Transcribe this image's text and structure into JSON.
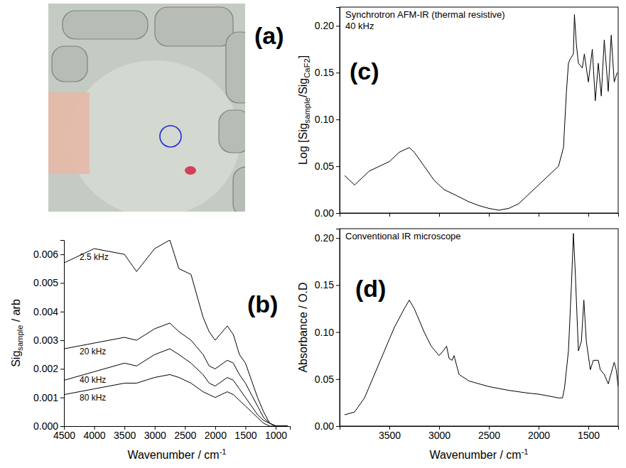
{
  "chart_data": [
    {
      "type": "image",
      "panel_label": "(a)"
    },
    {
      "type": "line",
      "panel_label": "(b)",
      "xlabel": [
        {
          "text": "Wavenumber / cm"
        },
        {
          "sup": "-1"
        }
      ],
      "ylabel": [
        {
          "text": "Sig"
        },
        {
          "sub": "sample"
        },
        {
          "text": " / arb"
        }
      ],
      "x": [
        4500,
        4000,
        3500,
        3300,
        3000,
        2750,
        2600,
        2400,
        2200,
        2100,
        2000,
        1800,
        1700,
        1600,
        1500,
        1400,
        1300,
        1200,
        1100,
        1000,
        800
      ],
      "series": [
        {
          "name": "2.5 kHz",
          "color": "#000000",
          "values": [
            0.0057,
            0.0062,
            0.006,
            0.0054,
            0.0062,
            0.0065,
            0.0055,
            0.0053,
            0.0038,
            0.0033,
            0.003,
            0.0035,
            0.0032,
            0.0025,
            0.0022,
            0.0016,
            0.001,
            0.0005,
            0.0001,
            0.0,
            0.0
          ]
        },
        {
          "name": "20 kHz",
          "color": "#000000",
          "values": [
            0.0027,
            0.0029,
            0.0031,
            0.003,
            0.0034,
            0.0036,
            0.0033,
            0.003,
            0.0025,
            0.0021,
            0.002,
            0.0023,
            0.0022,
            0.0018,
            0.0015,
            0.0011,
            0.0007,
            0.0003,
            0.0001,
            0.0,
            0.0
          ]
        },
        {
          "name": "40 kHz",
          "color": "#000000",
          "values": [
            0.0016,
            0.0019,
            0.0022,
            0.0021,
            0.0025,
            0.0027,
            0.0025,
            0.0022,
            0.0018,
            0.0015,
            0.0014,
            0.0017,
            0.0016,
            0.0013,
            0.001,
            0.0007,
            0.0004,
            0.0002,
            0.0001,
            0.0,
            0.0
          ]
        },
        {
          "name": "80 kHz",
          "color": "#000000",
          "values": [
            0.0011,
            0.0013,
            0.0015,
            0.0015,
            0.0017,
            0.0018,
            0.0017,
            0.0015,
            0.0012,
            0.0011,
            0.001,
            0.0012,
            0.0011,
            0.0009,
            0.0007,
            0.0005,
            0.0003,
            0.0001,
            0.0,
            0.0,
            0.0
          ]
        }
      ],
      "xlim": [
        4500,
        765
      ],
      "ylim": [
        0,
        0.0065
      ],
      "xticks": [
        4500,
        4000,
        3500,
        3000,
        2500,
        2000,
        1500,
        1000
      ],
      "yticks": [
        {
          "value": 0,
          "label": "0.000"
        },
        {
          "value": 0.001,
          "label": "0.001"
        },
        {
          "value": 0.002,
          "label": "0.002"
        },
        {
          "value": 0.003,
          "label": "0.003"
        },
        {
          "value": 0.004,
          "label": "0.004"
        },
        {
          "value": 0.005,
          "label": "0.005"
        },
        {
          "value": 0.006,
          "label": "0.006"
        }
      ]
    },
    {
      "type": "line",
      "panel_label": "(c)",
      "title": "Synchrotron AFM-IR (thermal resistive)",
      "subtitle": "40 kHz",
      "ylabel": [
        {
          "text": "Log [Sig"
        },
        {
          "sub": "sample"
        },
        {
          "text": "/Sig"
        },
        {
          "sub": "CaF2"
        },
        {
          "text": "]"
        }
      ],
      "x": [
        3950,
        3850,
        3700,
        3600,
        3500,
        3400,
        3300,
        3250,
        3150,
        3050,
        2950,
        2850,
        2700,
        2600,
        2500,
        2400,
        2300,
        2200,
        2100,
        2000,
        1900,
        1800,
        1750,
        1720,
        1700,
        1680,
        1650,
        1640,
        1620,
        1600,
        1560,
        1540,
        1500,
        1460,
        1430,
        1400,
        1370,
        1340,
        1300,
        1270,
        1240,
        1210
      ],
      "series": [
        {
          "color": "#000000",
          "values": [
            0.04,
            0.03,
            0.045,
            0.05,
            0.055,
            0.065,
            0.07,
            0.065,
            0.05,
            0.035,
            0.025,
            0.02,
            0.012,
            0.008,
            0.005,
            0.003,
            0.005,
            0.01,
            0.02,
            0.03,
            0.04,
            0.05,
            0.07,
            0.13,
            0.16,
            0.165,
            0.17,
            0.212,
            0.18,
            0.16,
            0.155,
            0.17,
            0.14,
            0.175,
            0.12,
            0.16,
            0.125,
            0.185,
            0.13,
            0.19,
            0.14,
            0.15
          ]
        }
      ],
      "xlim": [
        4000,
        1200
      ],
      "ylim": [
        0,
        0.22
      ],
      "xticks": [
        3500,
        3000,
        2500,
        2000,
        1500
      ],
      "yticks": [
        {
          "value": 0,
          "label": "0.00"
        },
        {
          "value": 0.05,
          "label": "0.05"
        },
        {
          "value": 0.1,
          "label": "0.10"
        },
        {
          "value": 0.15,
          "label": "0.15"
        },
        {
          "value": 0.2,
          "label": "0.20"
        }
      ],
      "tick_labels": "y"
    },
    {
      "type": "line",
      "panel_label": "(d)",
      "title": "Conventional IR microscope",
      "xlabel": [
        {
          "text": "Wavenumber / cm"
        },
        {
          "sup": "-1"
        }
      ],
      "ylabel": [
        {
          "text": "Absorbance / O.D"
        }
      ],
      "x": [
        3950,
        3850,
        3750,
        3650,
        3550,
        3450,
        3350,
        3300,
        3250,
        3150,
        3080,
        3000,
        2960,
        2925,
        2900,
        2870,
        2850,
        2800,
        2700,
        2500,
        2300,
        2100,
        2000,
        1900,
        1800,
        1760,
        1740,
        1700,
        1670,
        1650,
        1630,
        1600,
        1570,
        1545,
        1520,
        1480,
        1450,
        1400,
        1380,
        1340,
        1300,
        1240,
        1220,
        1200
      ],
      "series": [
        {
          "color": "#000000",
          "values": [
            0.012,
            0.015,
            0.03,
            0.055,
            0.08,
            0.105,
            0.125,
            0.134,
            0.125,
            0.1,
            0.085,
            0.075,
            0.08,
            0.085,
            0.072,
            0.07,
            0.075,
            0.055,
            0.048,
            0.042,
            0.038,
            0.035,
            0.034,
            0.032,
            0.03,
            0.03,
            0.04,
            0.08,
            0.15,
            0.205,
            0.16,
            0.08,
            0.09,
            0.134,
            0.09,
            0.06,
            0.07,
            0.07,
            0.06,
            0.055,
            0.045,
            0.068,
            0.06,
            0.042
          ]
        }
      ],
      "xlim": [
        4000,
        1200
      ],
      "ylim": [
        0,
        0.21
      ],
      "xticks": [
        3500,
        3000,
        2500,
        2000,
        1500
      ],
      "yticks": [
        {
          "value": 0,
          "label": "0.00"
        },
        {
          "value": 0.05,
          "label": "0.05"
        },
        {
          "value": 0.1,
          "label": "0.10"
        },
        {
          "value": 0.15,
          "label": "0.15"
        },
        {
          "value": 0.2,
          "label": "0.20"
        }
      ]
    }
  ]
}
